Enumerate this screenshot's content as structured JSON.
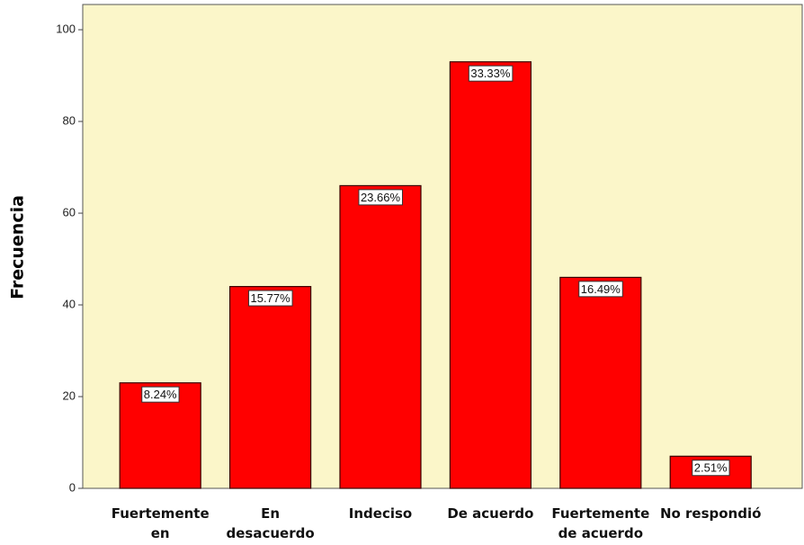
{
  "chart_data": {
    "type": "bar",
    "y_label": "Frecuencia",
    "categories": [
      "Fuertemente en desacuerdo",
      "En desacuerdo",
      "Indeciso",
      "De acuerdo",
      "Fuertemente de acuerdo",
      "No respondió"
    ],
    "values": [
      23,
      44,
      66,
      93,
      46,
      7
    ],
    "percent_labels": [
      "8.24%",
      "15.77%",
      "23.66%",
      "33.33%",
      "16.49%",
      "2.51%"
    ],
    "color": "#ff0000",
    "ylim": [
      0,
      105.5
    ],
    "yticks": [
      0,
      20,
      40,
      60,
      80,
      100
    ]
  }
}
